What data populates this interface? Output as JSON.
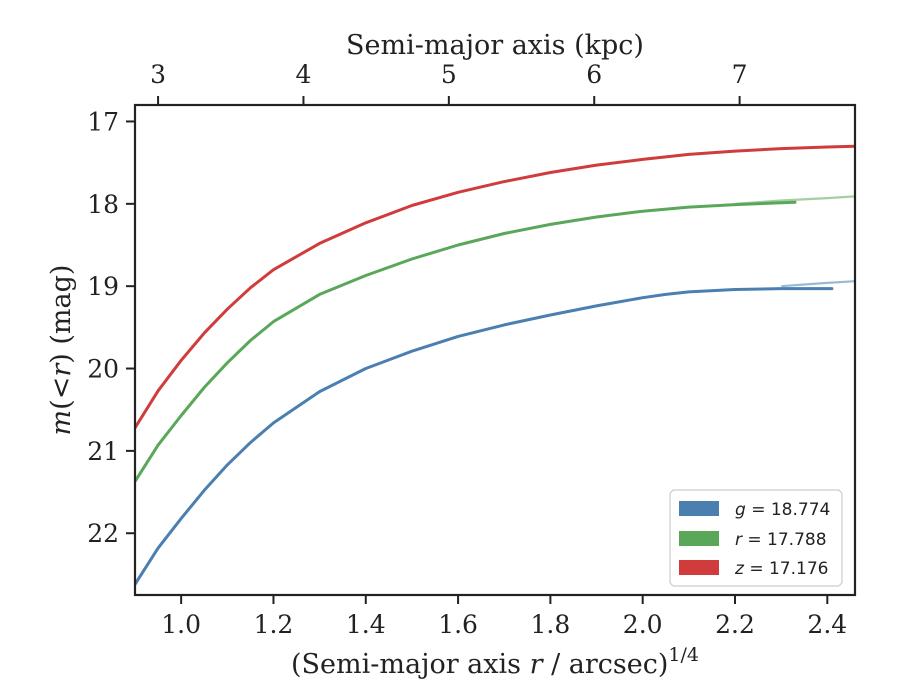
{
  "chart_data": {
    "type": "line",
    "xlabel_parts": {
      "prefix": "(Semi-major axis ",
      "var": "r",
      "mid": " / arcsec)",
      "sup": "1/4"
    },
    "ylabel_parts": {
      "pre": "m",
      "mid": "(<",
      "var": "r",
      "post": ")",
      "unit": " (mag)"
    },
    "top_xlabel": "Semi-major axis (kpc)",
    "xlim": [
      0.9,
      2.46
    ],
    "ylim": [
      22.75,
      16.8
    ],
    "y_inverted": true,
    "x_ticks": [
      {
        "value": 1.0,
        "label": "1.0"
      },
      {
        "value": 1.2,
        "label": "1.2"
      },
      {
        "value": 1.4,
        "label": "1.4"
      },
      {
        "value": 1.6,
        "label": "1.6"
      },
      {
        "value": 1.8,
        "label": "1.8"
      },
      {
        "value": 2.0,
        "label": "2.0"
      },
      {
        "value": 2.2,
        "label": "2.2"
      },
      {
        "value": 2.4,
        "label": "2.4"
      }
    ],
    "y_ticks": [
      {
        "value": 17,
        "label": "17"
      },
      {
        "value": 18,
        "label": "18"
      },
      {
        "value": 19,
        "label": "19"
      },
      {
        "value": 20,
        "label": "20"
      },
      {
        "value": 21,
        "label": "21"
      },
      {
        "value": 22,
        "label": "22"
      }
    ],
    "top_ticks": [
      {
        "value": 3,
        "label": "3",
        "x_bottom": 0.95
      },
      {
        "value": 4,
        "label": "4",
        "x_bottom": 1.265
      },
      {
        "value": 5,
        "label": "5",
        "x_bottom": 1.58
      },
      {
        "value": 6,
        "label": "6",
        "x_bottom": 1.895
      },
      {
        "value": 7,
        "label": "7",
        "x_bottom": 2.21
      }
    ],
    "grid": false,
    "legend_position": "lower-right",
    "series": [
      {
        "key": "g",
        "name_var": "g",
        "name_val": " = 18.774",
        "color": "#4a7fb0",
        "x": [
          0.9,
          0.95,
          1.0,
          1.05,
          1.1,
          1.15,
          1.2,
          1.3,
          1.4,
          1.5,
          1.6,
          1.7,
          1.8,
          1.9,
          2.0,
          2.05,
          2.1,
          2.2,
          2.3,
          2.41
        ],
        "y": [
          22.62,
          22.18,
          21.82,
          21.48,
          21.17,
          20.9,
          20.66,
          20.28,
          20.0,
          19.79,
          19.61,
          19.47,
          19.35,
          19.24,
          19.14,
          19.1,
          19.07,
          19.04,
          19.03,
          19.03
        ],
        "ext_x": [
          2.3,
          2.35,
          2.4,
          2.46
        ],
        "ext_y": [
          19.0,
          18.98,
          18.96,
          18.94
        ]
      },
      {
        "key": "r",
        "name_var": "r",
        "name_val": " = 17.788",
        "color": "#5aa75a",
        "x": [
          0.9,
          0.95,
          1.0,
          1.05,
          1.1,
          1.15,
          1.2,
          1.3,
          1.4,
          1.5,
          1.6,
          1.7,
          1.8,
          1.9,
          2.0,
          2.1,
          2.2,
          2.33
        ],
        "y": [
          21.37,
          20.93,
          20.57,
          20.23,
          19.93,
          19.66,
          19.43,
          19.1,
          18.87,
          18.67,
          18.5,
          18.36,
          18.25,
          18.16,
          18.09,
          18.04,
          18.01,
          17.98
        ],
        "ext_x": [
          2.2,
          2.3,
          2.4,
          2.46
        ],
        "ext_y": [
          18.0,
          17.96,
          17.93,
          17.91
        ]
      },
      {
        "key": "z",
        "name_var": "z",
        "name_val": " = 17.176",
        "color": "#d03c3c",
        "x": [
          0.9,
          0.95,
          1.0,
          1.05,
          1.1,
          1.15,
          1.2,
          1.3,
          1.4,
          1.5,
          1.6,
          1.7,
          1.8,
          1.9,
          2.0,
          2.1,
          2.2,
          2.3,
          2.4,
          2.46
        ],
        "y": [
          20.72,
          20.27,
          19.9,
          19.57,
          19.28,
          19.02,
          18.8,
          18.48,
          18.23,
          18.02,
          17.86,
          17.73,
          17.62,
          17.53,
          17.46,
          17.4,
          17.36,
          17.33,
          17.31,
          17.3
        ],
        "ext_x": [],
        "ext_y": []
      }
    ]
  }
}
